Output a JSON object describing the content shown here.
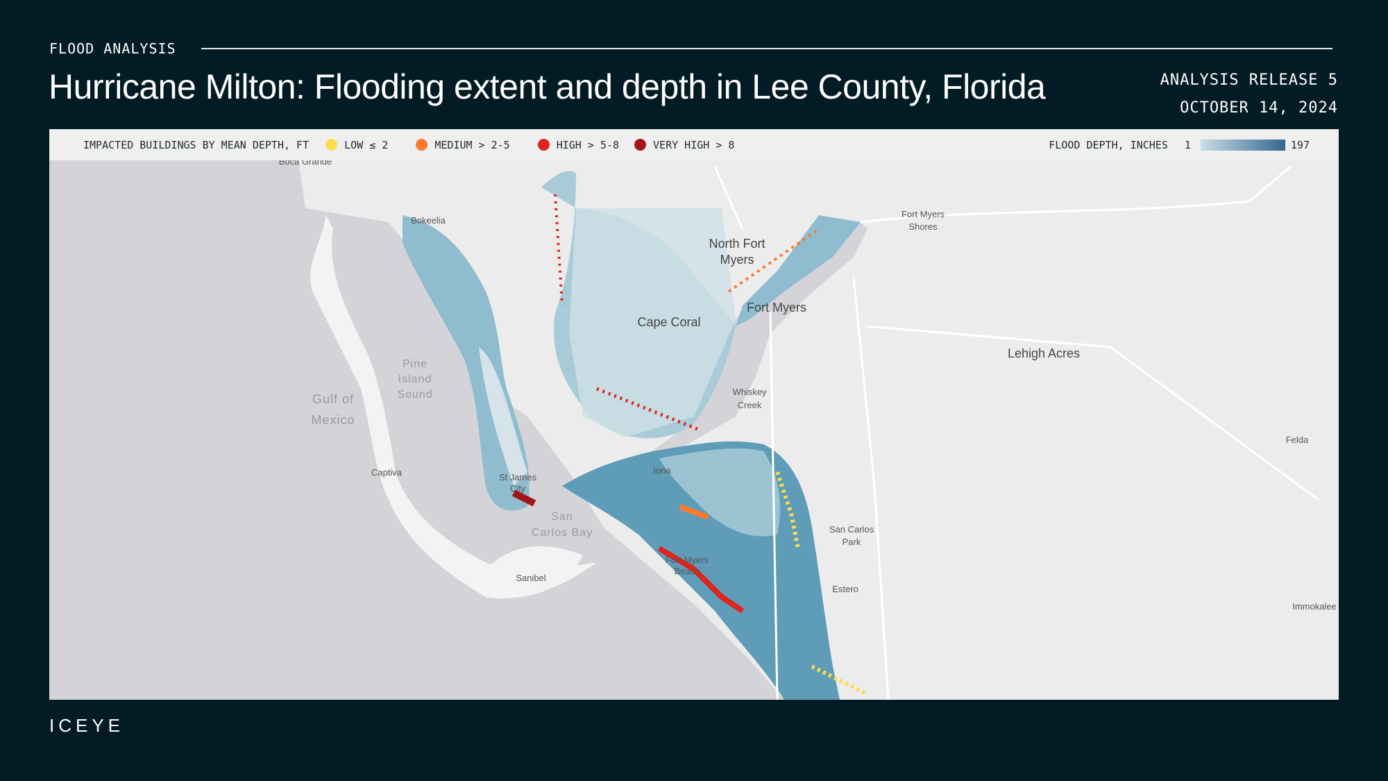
{
  "header": {
    "kicker": "FLOOD ANALYSIS",
    "title": "Hurricane Milton: Flooding extent and depth in Lee County, Florida",
    "release": "ANALYSIS RELEASE 5",
    "date": "OCTOBER 14, 2024"
  },
  "legend": {
    "buildings_label": "IMPACTED BUILDINGS BY MEAN DEPTH, FT",
    "items": [
      {
        "label": "LOW ≤ 2",
        "color": "#fddc4f"
      },
      {
        "label": "MEDIUM > 2-5",
        "color": "#fb7a2e"
      },
      {
        "label": "HIGH > 5-8",
        "color": "#e0231f"
      },
      {
        "label": "VERY HIGH > 8",
        "color": "#a5141a"
      }
    ],
    "depth_label": "FLOOD DEPTH, INCHES",
    "depth_min": "1",
    "depth_max": "197",
    "ramp_colors": [
      "#c9dde4",
      "#356790"
    ]
  },
  "map": {
    "places": {
      "boca_grande": "Boca Grande",
      "bokeelia": "Bokeelia",
      "north_fort_myers_1": "North Fort",
      "north_fort_myers_2": "Myers",
      "fort_myers_shores_1": "Fort Myers",
      "fort_myers_shores_2": "Shores",
      "fort_myers": "Fort Myers",
      "cape_coral": "Cape Coral",
      "lehigh_acres": "Lehigh Acres",
      "whiskey_creek_1": "Whiskey",
      "whiskey_creek_2": "Creek",
      "felda": "Felda",
      "captiva": "Captiva",
      "st_james_1": "St James",
      "st_james_2": "City",
      "iona": "Iona",
      "san_carlos_park_1": "San Carlos",
      "san_carlos_park_2": "Park",
      "sanibel": "Sanibel",
      "fmb_1": "Fort Myers",
      "fmb_2": "Beach",
      "estero": "Estero",
      "immokalee": "Immokalee"
    },
    "water": {
      "pine_1": "Pine",
      "pine_2": "Island",
      "pine_3": "Sound",
      "gulf_1": "Gulf of",
      "gulf_2": "Mexico",
      "scb_1": "San",
      "scb_2": "Carlos Bay"
    }
  },
  "footer": {
    "logo": "ICEYE"
  }
}
